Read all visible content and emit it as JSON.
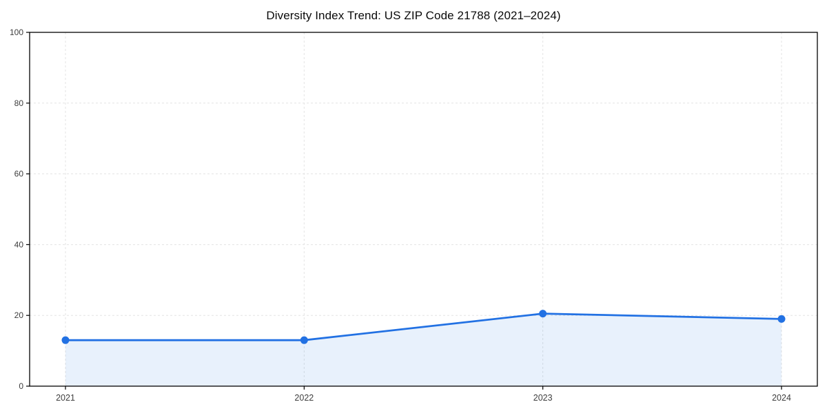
{
  "chart_data": {
    "type": "area",
    "title": "Diversity Index Trend: US ZIP Code 21788 (2021–2024)",
    "categories": [
      "2021",
      "2022",
      "2023",
      "2024"
    ],
    "series": [
      {
        "name": "Diversity Index",
        "values": [
          13.0,
          13.0,
          20.5,
          19.0
        ]
      }
    ],
    "xlabel": "",
    "ylabel": "",
    "ylim": [
      0,
      100
    ],
    "yticks": [
      0,
      20,
      40,
      60,
      80,
      100
    ],
    "grid": "dashed",
    "legend_position": "none",
    "colors": {
      "line": "#2271e3",
      "marker": "#2271e3",
      "fill": "rgba(34, 113, 227, 0.10)",
      "grid": "#e3e3e3",
      "axis": "#000000",
      "tick_text": "#3d3d3d",
      "title_text": "#0a0a0a",
      "background": "#ffffff"
    }
  }
}
